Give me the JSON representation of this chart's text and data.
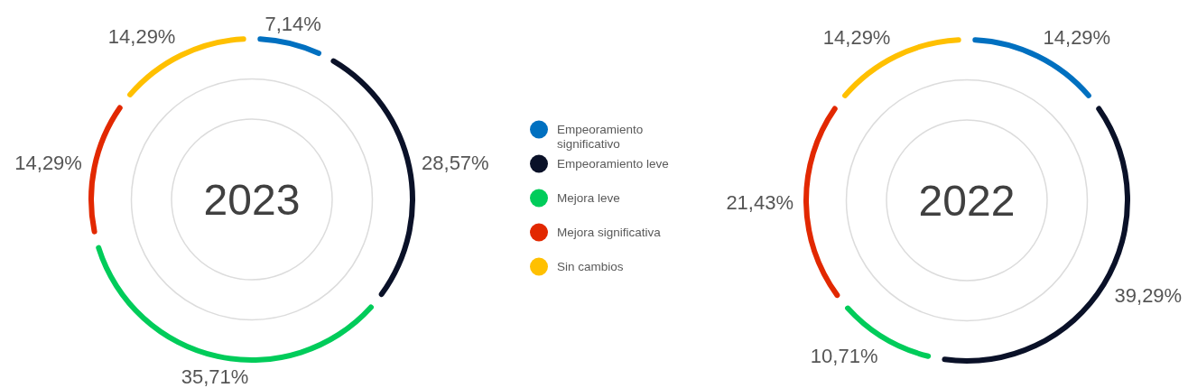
{
  "chart_data": {
    "type": "donut",
    "categories": [
      "Empeoramiento significativo",
      "Empeoramiento leve",
      "Mejora leve",
      "Mejora significativa",
      "Sin cambios"
    ],
    "colors": [
      "#0070c0",
      "#0a1128",
      "#00cc5a",
      "#e22800",
      "#ffc000"
    ],
    "legend": "center",
    "series": [
      {
        "name": "2023",
        "values": [
          7.14,
          28.57,
          35.71,
          14.29,
          14.29
        ],
        "value_labels": [
          "7,14%",
          "28,57%",
          "35,71%",
          "14,29%",
          "14,29%"
        ]
      },
      {
        "name": "2022",
        "values": [
          14.29,
          39.29,
          10.71,
          21.43,
          14.29
        ],
        "value_labels": [
          "14,29%",
          "39,29%",
          "10,71%",
          "21,43%",
          "14,29%"
        ]
      }
    ]
  }
}
